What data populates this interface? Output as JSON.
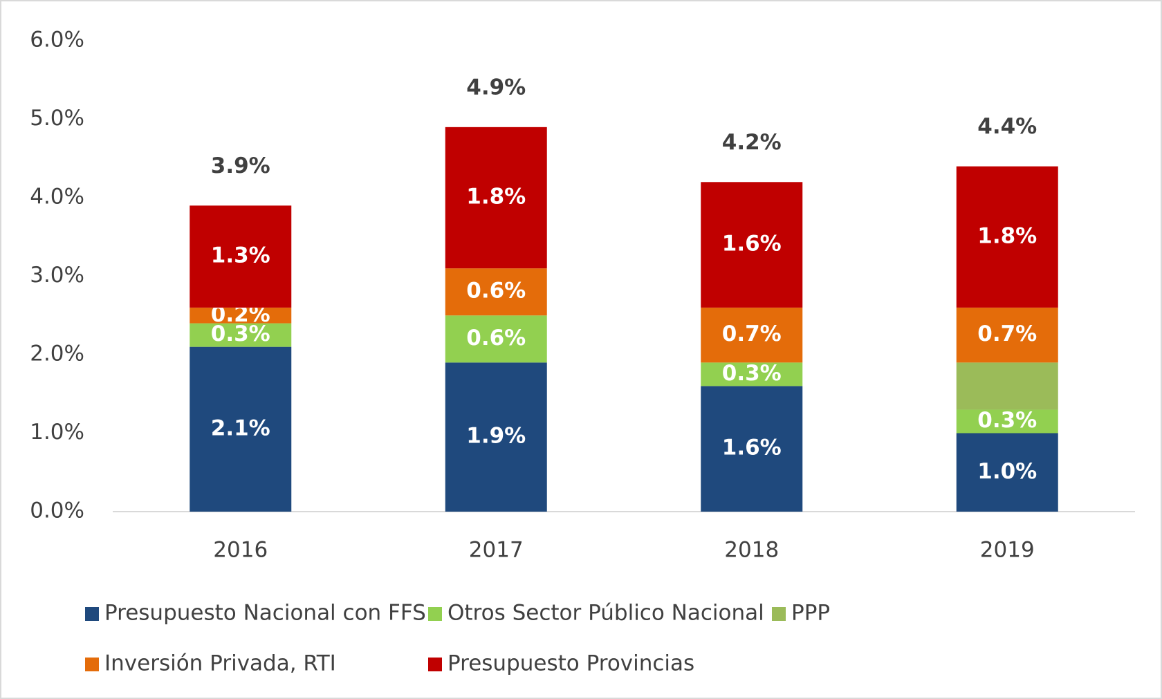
{
  "chart_data": {
    "type": "stacked_bar",
    "categories": [
      "2016",
      "2017",
      "2018",
      "2019"
    ],
    "series": [
      {
        "name": "Presupuesto Nacional con FFS",
        "color": "#1f497d",
        "values": [
          2.1,
          1.9,
          1.6,
          1.0
        ],
        "value_labels": [
          "2.1%",
          "1.9%",
          "1.6%",
          "1.0%"
        ]
      },
      {
        "name": "Otros Sector Público Nacional",
        "color": "#92d050",
        "values": [
          0.3,
          0.6,
          0.3,
          0.3
        ],
        "value_labels": [
          "0.3%",
          "0.6%",
          "0.3%",
          "0.3%"
        ]
      },
      {
        "name": "PPP",
        "color": "#9bbb59",
        "values": [
          0,
          0,
          0,
          0.6
        ]
      },
      {
        "name": "Inversión Privada, RTI",
        "color": "#e46c0a",
        "values": [
          0.2,
          0.6,
          0.7,
          0.7
        ],
        "value_labels": [
          "0.2%",
          "0.6%",
          "0.7%",
          "0.7%"
        ]
      },
      {
        "name": "Presupuesto Provincias",
        "color": "#c00000",
        "values": [
          1.3,
          1.8,
          1.6,
          1.8
        ],
        "value_labels": [
          "1.3%",
          "1.8%",
          "1.6%",
          "1.8%"
        ]
      }
    ],
    "totals": [
      3.9,
      4.9,
      4.2,
      4.4
    ],
    "total_labels": [
      "3.9%",
      "4.9%",
      "4.2%",
      "4.4%"
    ],
    "ylim": [
      0,
      6
    ],
    "yticks": [
      {
        "value": 0,
        "label": "0.0%"
      },
      {
        "value": 1,
        "label": "1.0%"
      },
      {
        "value": 2,
        "label": "2.0%"
      },
      {
        "value": 3,
        "label": "3.0%"
      },
      {
        "value": 4,
        "label": "4.0%"
      },
      {
        "value": 5,
        "label": "5.0%"
      },
      {
        "value": 6,
        "label": "6.0%"
      }
    ],
    "grid": false,
    "legend": "bottom"
  }
}
